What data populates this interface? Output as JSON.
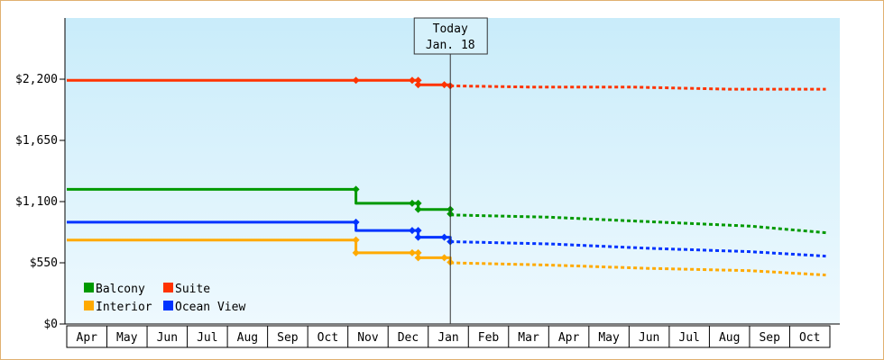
{
  "chart_data": {
    "type": "line",
    "title": "",
    "xlabel": "",
    "ylabel": "",
    "ylim": [
      0,
      2750
    ],
    "y_ticks": [
      0,
      550,
      1100,
      1650,
      2200
    ],
    "y_tick_labels": [
      "$0",
      "$550",
      "$1,100",
      "$1,650",
      "$2,200"
    ],
    "x_tick_labels": [
      "Apr",
      "May",
      "Jun",
      "Jul",
      "Aug",
      "Sep",
      "Oct",
      "Nov",
      "Dec",
      "Jan",
      "Feb",
      "Mar",
      "Apr",
      "May",
      "Jun",
      "Jul",
      "Aug",
      "Sep",
      "Oct"
    ],
    "today": {
      "label": "Today",
      "date": "Jan. 18",
      "x": 9.55
    },
    "grid": false,
    "legend_position": "bottom-left",
    "series": [
      {
        "name": "Suite",
        "color": "#ff3300",
        "history": [
          [
            0,
            2190
          ],
          [
            7.2,
            2190
          ],
          [
            7.2,
            2190
          ],
          [
            8.6,
            2190
          ],
          [
            8.6,
            2190
          ],
          [
            8.75,
            2190
          ],
          [
            8.75,
            2150
          ],
          [
            9.4,
            2150
          ],
          [
            9.4,
            2150
          ],
          [
            9.55,
            2150
          ],
          [
            9.55,
            2140
          ]
        ],
        "markers": [
          [
            7.2,
            2190
          ],
          [
            8.6,
            2190
          ],
          [
            8.75,
            2190
          ],
          [
            8.75,
            2150
          ],
          [
            9.4,
            2150
          ],
          [
            9.55,
            2140
          ]
        ],
        "forecast": [
          [
            9.55,
            2140
          ],
          [
            11.5,
            2130
          ],
          [
            14,
            2130
          ],
          [
            16.5,
            2110
          ],
          [
            18.9,
            2110
          ]
        ]
      },
      {
        "name": "Balcony",
        "color": "#009900",
        "history": [
          [
            0,
            1210
          ],
          [
            7.2,
            1210
          ],
          [
            7.2,
            1085
          ],
          [
            8.6,
            1085
          ],
          [
            8.6,
            1085
          ],
          [
            8.75,
            1085
          ],
          [
            8.75,
            1030
          ],
          [
            9.55,
            1030
          ],
          [
            9.55,
            990
          ]
        ],
        "markers": [
          [
            7.2,
            1210
          ],
          [
            8.6,
            1085
          ],
          [
            8.75,
            1085
          ],
          [
            8.75,
            1030
          ],
          [
            9.55,
            1030
          ],
          [
            9.55,
            990
          ]
        ],
        "forecast": [
          [
            9.55,
            980
          ],
          [
            12,
            960
          ],
          [
            14.5,
            920
          ],
          [
            17,
            880
          ],
          [
            18.9,
            820
          ]
        ]
      },
      {
        "name": "Ocean View",
        "color": "#0033ff",
        "history": [
          [
            0,
            915
          ],
          [
            7.2,
            915
          ],
          [
            7.2,
            840
          ],
          [
            8.6,
            840
          ],
          [
            8.6,
            840
          ],
          [
            8.75,
            840
          ],
          [
            8.75,
            780
          ],
          [
            9.4,
            780
          ],
          [
            9.4,
            780
          ],
          [
            9.55,
            780
          ],
          [
            9.55,
            740
          ]
        ],
        "markers": [
          [
            7.2,
            915
          ],
          [
            8.6,
            840
          ],
          [
            8.75,
            840
          ],
          [
            8.75,
            780
          ],
          [
            9.4,
            780
          ],
          [
            9.55,
            740
          ]
        ],
        "forecast": [
          [
            9.55,
            740
          ],
          [
            12,
            720
          ],
          [
            14.5,
            680
          ],
          [
            17,
            650
          ],
          [
            18.9,
            610
          ]
        ]
      },
      {
        "name": "Interior",
        "color": "#ffaa00",
        "history": [
          [
            0,
            755
          ],
          [
            7.2,
            755
          ],
          [
            7.2,
            640
          ],
          [
            8.6,
            640
          ],
          [
            8.6,
            640
          ],
          [
            8.75,
            640
          ],
          [
            8.75,
            595
          ],
          [
            9.4,
            595
          ],
          [
            9.4,
            595
          ],
          [
            9.55,
            595
          ],
          [
            9.55,
            555
          ]
        ],
        "markers": [
          [
            7.2,
            755
          ],
          [
            7.2,
            640
          ],
          [
            8.6,
            640
          ],
          [
            8.75,
            640
          ],
          [
            8.75,
            595
          ],
          [
            9.4,
            595
          ],
          [
            9.55,
            555
          ]
        ],
        "forecast": [
          [
            9.55,
            550
          ],
          [
            12,
            530
          ],
          [
            14.5,
            500
          ],
          [
            17,
            480
          ],
          [
            18.9,
            440
          ]
        ]
      }
    ],
    "legend": [
      {
        "name": "Balcony",
        "color": "#009900"
      },
      {
        "name": "Suite",
        "color": "#ff3300"
      },
      {
        "name": "Interior",
        "color": "#ffaa00"
      },
      {
        "name": "Ocean View",
        "color": "#0033ff"
      }
    ]
  }
}
